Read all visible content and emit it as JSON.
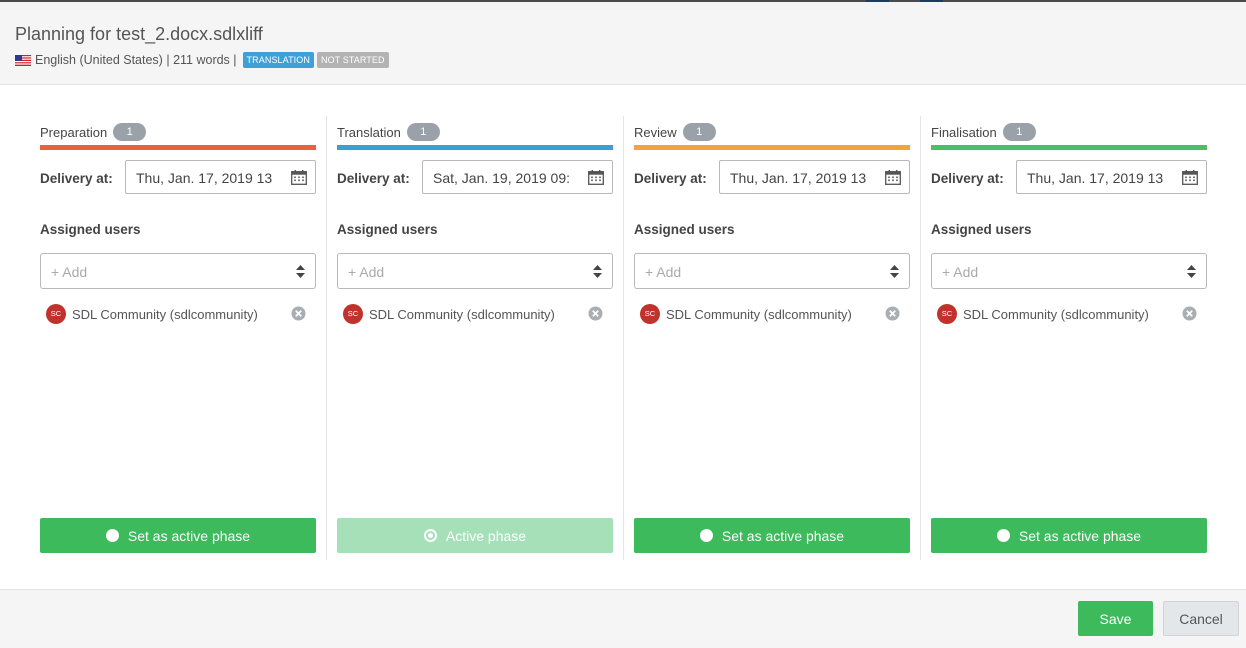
{
  "dialog": {
    "title": "Planning for test_2.docx.sdlxliff",
    "flag_icon": "us-flag-icon",
    "language": "English (United States)",
    "separator1": "|",
    "words": "211 words",
    "separator2": "|",
    "badges": {
      "translation": "TRANSLATION",
      "not_started": "NOT STARTED"
    }
  },
  "labels": {
    "delivery": "Delivery at:",
    "assigned_users": "Assigned users",
    "add_placeholder": "+ Add"
  },
  "phases": [
    {
      "name": "Preparation",
      "count": "1",
      "color": "#e8623a",
      "delivery": "Thu, Jan. 17, 2019 13",
      "user_initials": "SC",
      "user": "SDL Community (sdlcommunity)",
      "button": "Set as active phase",
      "active": false
    },
    {
      "name": "Translation",
      "count": "1",
      "color": "#3a9fd1",
      "delivery": "Sat, Jan. 19, 2019 09:",
      "user_initials": "SC",
      "user": "SDL Community (sdlcommunity)",
      "button": "Active phase",
      "active": true
    },
    {
      "name": "Review",
      "count": "1",
      "color": "#f0a43a",
      "delivery": "Thu, Jan. 17, 2019 13",
      "user_initials": "SC",
      "user": "SDL Community (sdlcommunity)",
      "button": "Set as active phase",
      "active": false
    },
    {
      "name": "Finalisation",
      "count": "1",
      "color": "#49c068",
      "delivery": "Thu, Jan. 17, 2019 13",
      "user_initials": "SC",
      "user": "SDL Community (sdlcommunity)",
      "button": "Set as active phase",
      "active": false
    }
  ],
  "footer": {
    "save": "Save",
    "cancel": "Cancel"
  },
  "colors": {
    "primary_green": "#3cba5c",
    "active_green": "#a6e0b8",
    "avatar_red": "#c0322b"
  }
}
